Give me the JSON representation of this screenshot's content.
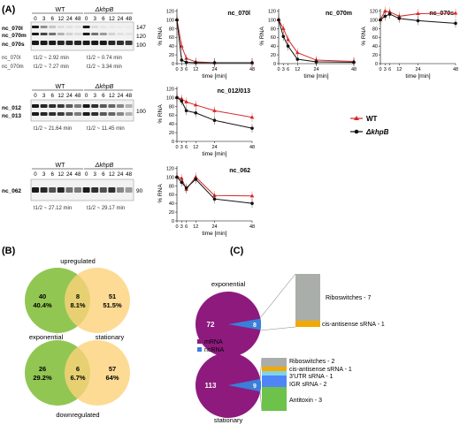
{
  "panels": {
    "A": "(A)",
    "B": "(B)",
    "C": "(C)"
  },
  "blots": [
    {
      "wt": "WT",
      "khpb": "ΔkhpB",
      "timepoints": [
        "0",
        "3",
        "6",
        "12",
        "24",
        "48",
        "0",
        "3",
        "6",
        "12",
        "24",
        "48"
      ],
      "row_labels": [
        "nc_070l",
        "nc_070m",
        "nc_070s"
      ],
      "size_labels": [
        "147",
        "120",
        "100"
      ],
      "halflife_rows": [
        {
          "name": "nc_070l",
          "wt": "t1/2 ~ 2.92 min",
          "khpb": "t1/2 ~ 0.74 min"
        },
        {
          "name": "nc_070m",
          "wt": "t1/2 ~ 7.27 min",
          "khpb": "t1/2 ~ 3.34 min"
        }
      ]
    },
    {
      "wt": "WT",
      "khpb": "ΔkhpB",
      "timepoints": [
        "0",
        "3",
        "6",
        "12",
        "24",
        "48",
        "0",
        "3",
        "6",
        "12",
        "24",
        "48"
      ],
      "row_labels": [
        "nc_012",
        "nc_013"
      ],
      "size_labels": [
        "100"
      ],
      "halflife_rows": [
        {
          "name": "",
          "wt": "t1/2 ~ 21.64 min",
          "khpb": "t1/2 ~ 11.45 min"
        }
      ]
    },
    {
      "wt": "WT",
      "khpb": "ΔkhpB",
      "timepoints": [
        "0",
        "3",
        "6",
        "12",
        "24",
        "48",
        "0",
        "3",
        "6",
        "12",
        "24",
        "48"
      ],
      "row_labels": [
        "nc_062"
      ],
      "size_labels": [
        "90"
      ],
      "halflife_rows": [
        {
          "name": "",
          "wt": "t1/2 ~ 27.12 min",
          "khpb": "t1/2 ~ 29.17 min"
        }
      ]
    }
  ],
  "legend": {
    "wt": "WT",
    "khpb": "ΔkhpB"
  },
  "colors": {
    "wt": "#d62728",
    "khpb": "#111111",
    "green": "#8bc34a",
    "orange": "#fdd27a",
    "mrna": "#8e1a7e",
    "ncrna": "#3a7fd9"
  },
  "chart_data": [
    {
      "type": "line",
      "title": "nc_070l",
      "xlabel": "time [min]",
      "ylabel": "% RNA",
      "x": [
        0,
        3,
        6,
        12,
        24,
        48
      ],
      "xticks": [
        0,
        3,
        6,
        12,
        24,
        48
      ],
      "yticks": [
        0,
        20,
        40,
        60,
        80,
        100,
        120
      ],
      "ylim": [
        0,
        125
      ],
      "series": [
        {
          "name": "WT",
          "values": [
            100,
            40,
            12,
            4,
            2,
            2
          ]
        },
        {
          "name": "ΔkhpB",
          "values": [
            100,
            8,
            3,
            2,
            2,
            2
          ]
        }
      ]
    },
    {
      "type": "line",
      "title": "nc_070m",
      "xlabel": "time [min]",
      "ylabel": "% RNA",
      "x": [
        0,
        3,
        6,
        12,
        24,
        48
      ],
      "xticks": [
        0,
        3,
        6,
        12,
        24,
        48
      ],
      "yticks": [
        0,
        20,
        40,
        60,
        80,
        100,
        120
      ],
      "ylim": [
        0,
        125
      ],
      "series": [
        {
          "name": "WT",
          "values": [
            100,
            80,
            55,
            25,
            8,
            5
          ]
        },
        {
          "name": "ΔkhpB",
          "values": [
            100,
            62,
            40,
            10,
            4,
            3
          ]
        }
      ]
    },
    {
      "type": "line",
      "title": "nc_070s",
      "xlabel": "time [min]",
      "ylabel": "% RNA",
      "x": [
        0,
        3,
        6,
        12,
        24,
        48
      ],
      "xticks": [
        0,
        3,
        6,
        12,
        24,
        48
      ],
      "yticks": [
        0,
        20,
        40,
        60,
        80,
        100,
        120
      ],
      "ylim": [
        0,
        125
      ],
      "series": [
        {
          "name": "WT",
          "values": [
            100,
            120,
            118,
            108,
            114,
            115
          ]
        },
        {
          "name": "ΔkhpB",
          "values": [
            100,
            108,
            113,
            103,
            98,
            92
          ]
        }
      ]
    },
    {
      "type": "line",
      "title": "nc_012/013",
      "xlabel": "time [min]",
      "ylabel": "% RNA",
      "x": [
        0,
        3,
        6,
        12,
        24,
        48
      ],
      "xticks": [
        0,
        3,
        6,
        12,
        24,
        48
      ],
      "yticks": [
        0,
        20,
        40,
        60,
        80,
        100,
        120
      ],
      "ylim": [
        0,
        125
      ],
      "series": [
        {
          "name": "WT",
          "values": [
            100,
            97,
            90,
            83,
            70,
            55
          ]
        },
        {
          "name": "ΔkhpB",
          "values": [
            100,
            92,
            70,
            65,
            48,
            30
          ]
        }
      ]
    },
    {
      "type": "line",
      "title": "nc_062",
      "xlabel": "time [min]",
      "ylabel": "% RNA",
      "x": [
        0,
        3,
        6,
        12,
        24,
        48
      ],
      "xticks": [
        0,
        3,
        6,
        12,
        24,
        48
      ],
      "yticks": [
        0,
        20,
        40,
        60,
        80,
        100,
        120
      ],
      "ylim": [
        0,
        125
      ],
      "series": [
        {
          "name": "WT",
          "values": [
            100,
            97,
            72,
            100,
            58,
            57
          ]
        },
        {
          "name": "ΔkhpB",
          "values": [
            100,
            88,
            75,
            95,
            50,
            40
          ]
        }
      ]
    }
  ],
  "venn": [
    {
      "title": "upregulated",
      "left": [
        "40",
        "40.4%"
      ],
      "mid": [
        "8",
        "8.1%"
      ],
      "right": [
        "51",
        "51.5%"
      ]
    },
    {
      "title": "downregulated",
      "left": [
        "26",
        "29.2%"
      ],
      "mid": [
        "6",
        "6.7%"
      ],
      "right": [
        "57",
        "64%"
      ]
    }
  ],
  "venn_labels": {
    "left": "exponential",
    "right": "stationary"
  },
  "pies": [
    {
      "title": "exponential",
      "mrna": "72",
      "ncrna": "8",
      "breakdown": [
        {
          "label": "Riboswitches - 7",
          "count": 7,
          "color": "#a9aeaa"
        },
        {
          "label": "cis-antisense sRNA - 1",
          "count": 1,
          "color": "#f2a900"
        }
      ]
    },
    {
      "title": "stationary",
      "mrna": "113",
      "ncrna": "9",
      "breakdown": [
        {
          "label": "Riboswitches - 2",
          "count": 2,
          "color": "#a9aeaa"
        },
        {
          "label": "cis-antisense sRNA - 1",
          "count": 1,
          "color": "#f2a900"
        },
        {
          "label": "3'UTR sRNA - 1",
          "count": 1,
          "color": "#7fd3e8"
        },
        {
          "label": "IGR sRNA - 2",
          "count": 2,
          "color": "#4f86f7"
        },
        {
          "label": "Antitoxin - 3",
          "count": 3,
          "color": "#6cc24a"
        }
      ]
    }
  ],
  "pie_legend": {
    "mrna": "mRNA",
    "ncrna": "ncRNA"
  }
}
